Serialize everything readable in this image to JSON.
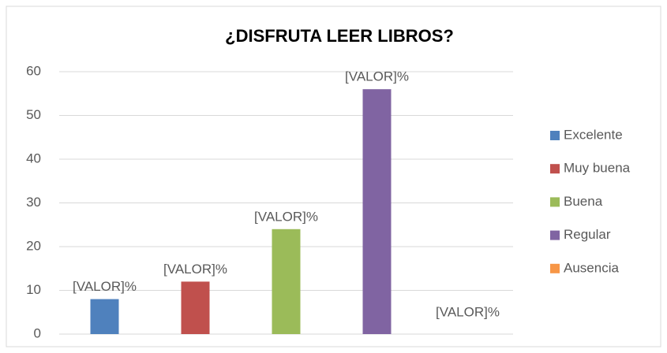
{
  "chart_data": {
    "type": "bar",
    "title": "¿DISFRUTA LEER LIBROS?",
    "categories": [
      null
    ],
    "series": [
      {
        "name": "Excelente",
        "color": "#4f81bd",
        "values": [
          8
        ],
        "value_labels": [
          "[VALOR]%"
        ]
      },
      {
        "name": "Muy buena",
        "color": "#c0504d",
        "values": [
          12
        ],
        "value_labels": [
          "[VALOR]%"
        ]
      },
      {
        "name": "Buena",
        "color": "#9bbb59",
        "values": [
          24
        ],
        "value_labels": [
          "[VALOR]%"
        ]
      },
      {
        "name": "Regular",
        "color": "#8064a2",
        "values": [
          56
        ],
        "value_labels": [
          "[VALOR]%"
        ]
      },
      {
        "name": "Ausencia",
        "color": "#f79646",
        "values": [
          0
        ],
        "value_labels": [
          "[VALOR]%"
        ]
      }
    ],
    "ylim": [
      0,
      60
    ],
    "yticks": [
      0,
      10,
      20,
      30,
      40,
      50,
      60
    ],
    "grid": true,
    "legend": "right"
  }
}
